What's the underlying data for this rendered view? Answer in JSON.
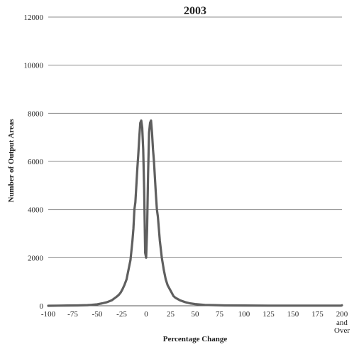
{
  "chart_data": {
    "type": "line",
    "title": "2003",
    "xlabel": "Percentage Change",
    "ylabel": "Number of Output Areas",
    "xlim": [
      -100,
      200
    ],
    "ylim": [
      0,
      12000
    ],
    "x_ticks": [
      "-100",
      "-75",
      "-50",
      "-25",
      "0",
      "25",
      "50",
      "75",
      "100",
      "125",
      "150",
      "175",
      "200"
    ],
    "x_last_tick_extra": [
      "and",
      "Over"
    ],
    "y_ticks": [
      "0",
      "2000",
      "4000",
      "6000",
      "8000",
      "10000",
      "12000"
    ],
    "grid": "horizontal",
    "colors": {
      "line": "#5f5f5f",
      "grid": "#8c8c8c",
      "axis": "#555555"
    },
    "series": [
      {
        "x": [
          -100,
          -90,
          -80,
          -70,
          -60,
          -55,
          -50,
          -45,
          -40,
          -35,
          -30,
          -28,
          -26,
          -24,
          -22,
          -20,
          -18,
          -16,
          -14,
          -13,
          -12,
          -11,
          -10,
          -9,
          -8,
          -7,
          -6,
          -5,
          -4,
          -3,
          -2,
          -1,
          0,
          1,
          2,
          3,
          4,
          5,
          6,
          7,
          8,
          9,
          10,
          11,
          12,
          13,
          14,
          16,
          18,
          20,
          22,
          24,
          26,
          28,
          30,
          35,
          40,
          45,
          50,
          60,
          70,
          80,
          100,
          125,
          150,
          175,
          199,
          200
        ],
        "y": [
          0,
          5,
          10,
          15,
          25,
          40,
          60,
          100,
          150,
          230,
          380,
          450,
          550,
          700,
          880,
          1100,
          1500,
          1900,
          2700,
          3200,
          4000,
          4300,
          5000,
          5700,
          6300,
          7000,
          7600,
          7700,
          7400,
          6500,
          4800,
          2200,
          2000,
          3200,
          5500,
          7200,
          7600,
          7700,
          7200,
          6500,
          6000,
          5300,
          4600,
          4000,
          3700,
          3200,
          2700,
          2000,
          1500,
          1100,
          850,
          700,
          550,
          400,
          330,
          220,
          150,
          100,
          70,
          35,
          25,
          15,
          10,
          5,
          5,
          5,
          5,
          20
        ]
      }
    ]
  }
}
